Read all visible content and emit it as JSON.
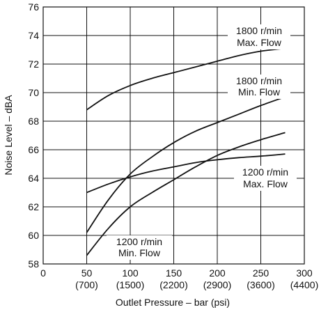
{
  "chart_data": {
    "type": "line",
    "title": "",
    "xlabel": "Outlet Pressure – bar (psi)",
    "ylabel": "Noise Level – dBA",
    "xlim": [
      0,
      300
    ],
    "ylim": [
      58,
      76
    ],
    "x_ticks": [
      {
        "value": 0,
        "label": "0",
        "sub": ""
      },
      {
        "value": 50,
        "label": "50",
        "sub": "(700)"
      },
      {
        "value": 100,
        "label": "100",
        "sub": "(1500)"
      },
      {
        "value": 150,
        "label": "150",
        "sub": "(2200)"
      },
      {
        "value": 200,
        "label": "200",
        "sub": "(2900)"
      },
      {
        "value": 250,
        "label": "250",
        "sub": "(3600)"
      },
      {
        "value": 300,
        "label": "300",
        "sub": "(4400)"
      }
    ],
    "y_ticks": [
      58,
      60,
      62,
      64,
      66,
      68,
      70,
      72,
      74,
      76
    ],
    "grid": true,
    "series": [
      {
        "name": "1800 r/min Max. Flow",
        "label_lines": [
          "1800 r/min",
          "Max. Flow"
        ],
        "x": [
          50,
          75,
          100,
          125,
          150,
          175,
          200,
          225,
          250,
          278
        ],
        "y": [
          68.8,
          69.8,
          70.5,
          71.0,
          71.4,
          71.8,
          72.2,
          72.6,
          72.9,
          73.1
        ]
      },
      {
        "name": "1800 r/min Min. Flow",
        "label_lines": [
          "1800 r/min",
          "Min. Flow"
        ],
        "x": [
          50,
          75,
          100,
          125,
          150,
          175,
          200,
          225,
          250,
          278
        ],
        "y": [
          60.2,
          62.5,
          64.3,
          65.5,
          66.5,
          67.3,
          67.9,
          68.5,
          69.1,
          69.7
        ]
      },
      {
        "name": "1200 r/min Max. Flow",
        "label_lines": [
          "1200 r/min",
          "Max. Flow"
        ],
        "x": [
          50,
          75,
          100,
          125,
          150,
          175,
          200,
          225,
          250,
          278
        ],
        "y": [
          63.0,
          63.6,
          64.1,
          64.5,
          64.8,
          65.1,
          65.3,
          65.45,
          65.55,
          65.7
        ]
      },
      {
        "name": "1200 r/min Min. Flow",
        "label_lines": [
          "1200 r/min",
          "Min. Flow"
        ],
        "x": [
          50,
          75,
          100,
          125,
          150,
          175,
          200,
          225,
          250,
          278
        ],
        "y": [
          58.6,
          60.5,
          62.0,
          63.0,
          63.9,
          64.8,
          65.6,
          66.2,
          66.7,
          67.2
        ]
      }
    ]
  }
}
